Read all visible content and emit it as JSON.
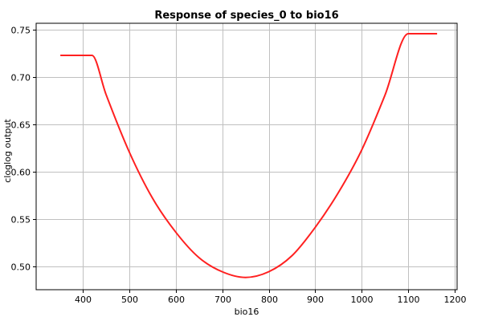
{
  "chart_data": {
    "type": "line",
    "title": "Response of species_0 to bio16",
    "xlabel": "bio16",
    "ylabel": "cloglog output",
    "xlim": [
      300,
      1205
    ],
    "ylim": [
      0.475,
      0.757
    ],
    "xticks": [
      400,
      500,
      600,
      700,
      800,
      900,
      1000,
      1100,
      1200
    ],
    "yticks": [
      0.5,
      0.55,
      0.6,
      0.65,
      0.7,
      0.75
    ],
    "xtick_labels": [
      "400",
      "500",
      "600",
      "700",
      "800",
      "900",
      "1000",
      "1100",
      "1200"
    ],
    "ytick_labels": [
      "0.50",
      "0.55",
      "0.60",
      "0.65",
      "0.70",
      "0.75"
    ],
    "grid": true,
    "legend": "none",
    "series": [
      {
        "color": "#ff2020",
        "x": [
          352,
          420,
          450,
          500,
          550,
          600,
          650,
          700,
          750,
          800,
          850,
          900,
          950,
          1000,
          1050,
          1100,
          1162
        ],
        "y": [
          0.723,
          0.723,
          0.682,
          0.621,
          0.572,
          0.536,
          0.509,
          0.494,
          0.488,
          0.494,
          0.511,
          0.541,
          0.578,
          0.623,
          0.681,
          0.746,
          0.746
        ]
      }
    ]
  }
}
